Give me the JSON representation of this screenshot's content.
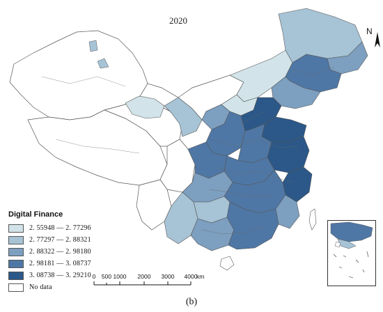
{
  "map": {
    "year_label": "2020",
    "north_label": "N",
    "caption": "(b)",
    "legend": {
      "title": "Digital Finance",
      "items": [
        {
          "label": "2. 55948 — 2. 77296",
          "color": "#d2e4ea"
        },
        {
          "label": "2. 77297 — 2. 88321",
          "color": "#a7c3d6"
        },
        {
          "label": "2. 88322 — 2. 98180",
          "color": "#7d9fc0"
        },
        {
          "label": "2. 98181 — 3. 08737",
          "color": "#4f77a5"
        },
        {
          "label": "3. 08738 — 3. 29210",
          "color": "#2b5888"
        },
        {
          "label": "No data",
          "color": "#ffffff"
        }
      ]
    },
    "scale_bar": {
      "ticks": [
        "0",
        "500",
        "1000",
        "2000",
        "3000",
        "4000"
      ],
      "unit": "km"
    }
  }
}
